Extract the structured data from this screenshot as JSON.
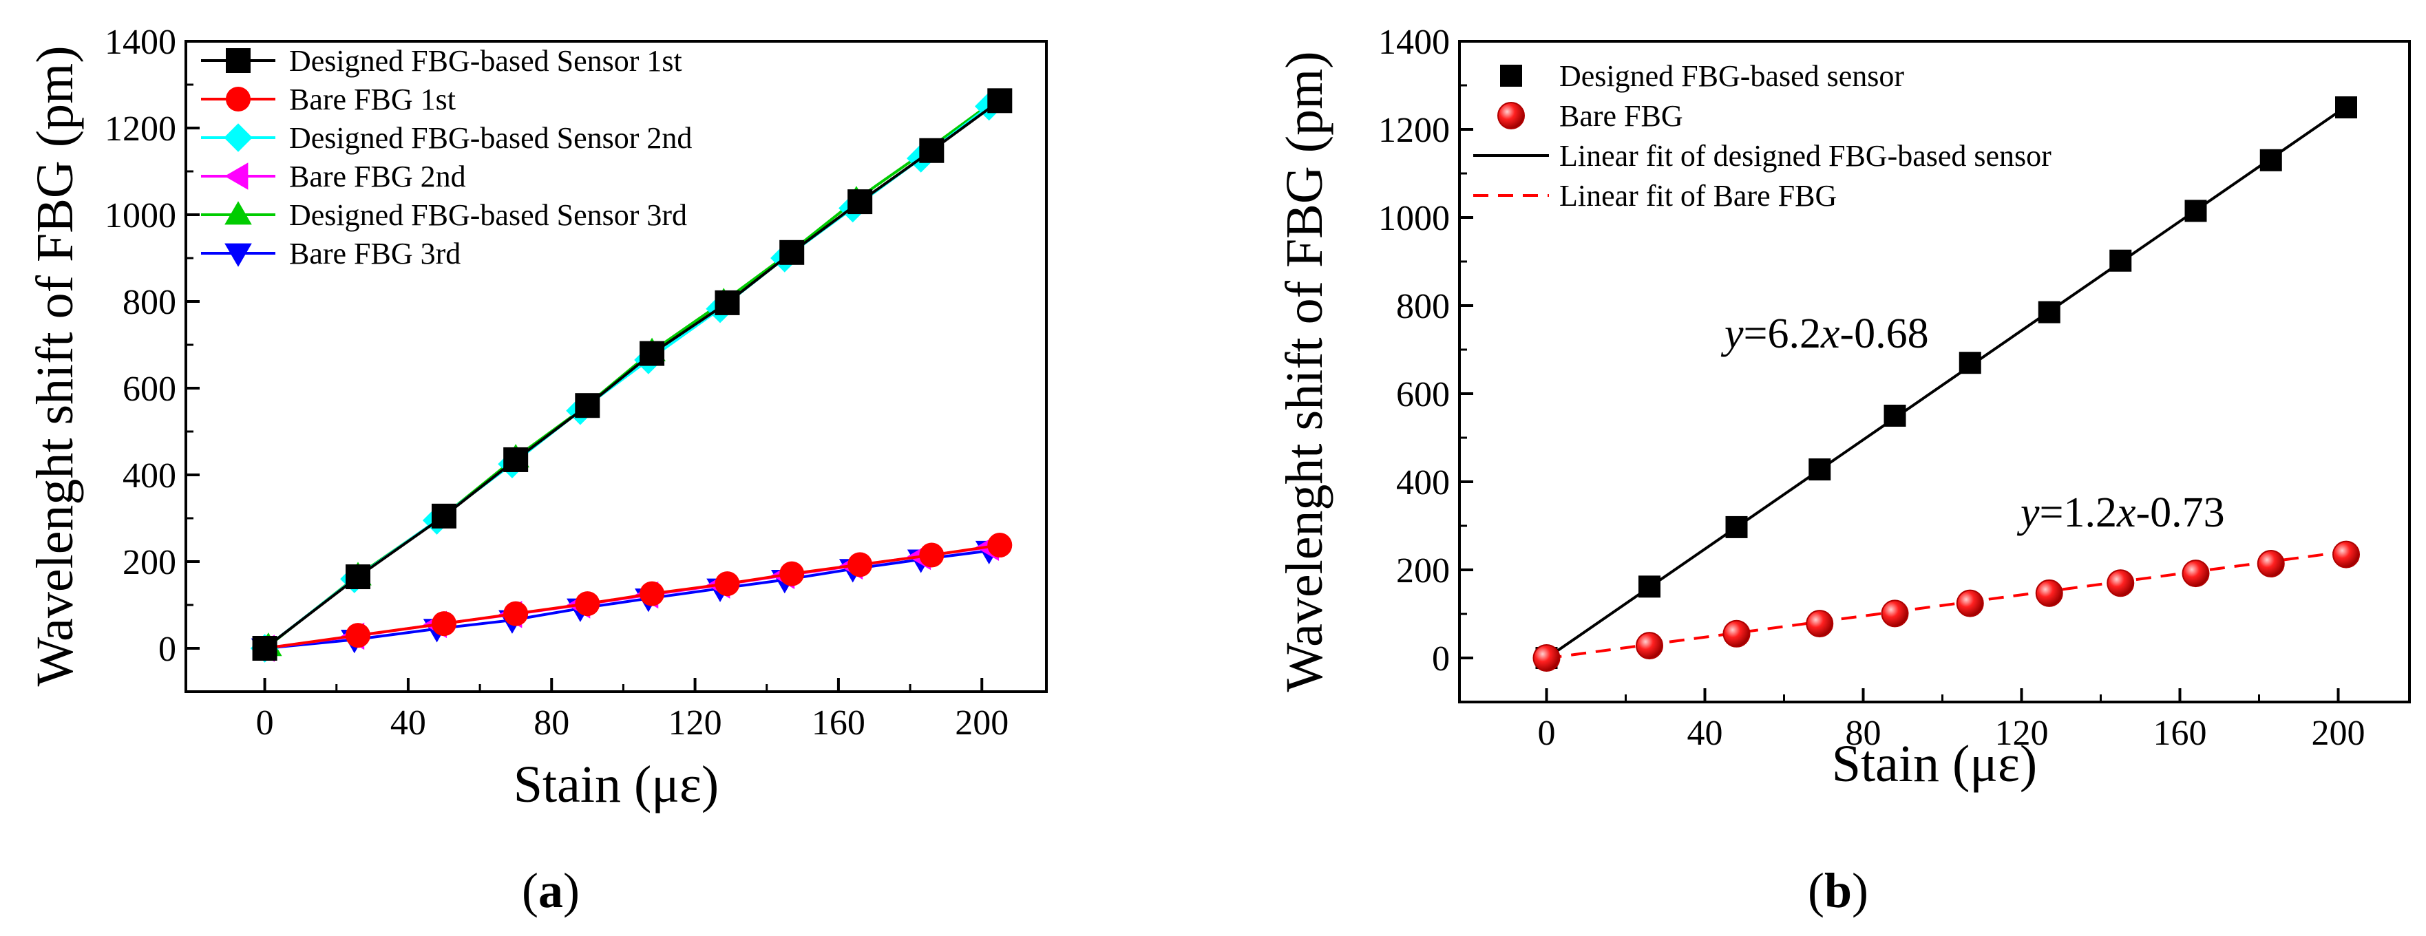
{
  "chart_data": [
    {
      "id": "a",
      "type": "line",
      "panel_label": "a",
      "xlabel": "Stain (με)",
      "ylabel": "Wavelenght shift of FBG (pm)",
      "xlim": [
        -22,
        218
      ],
      "ylim": [
        -100,
        1400
      ],
      "xticks": [
        "0",
        "40",
        "80",
        "120",
        "160",
        "200"
      ],
      "yticks": [
        "0",
        "200",
        "400",
        "600",
        "800",
        "1000",
        "1200",
        "1400"
      ],
      "legend_position": "top-left",
      "series": [
        {
          "name": "Designed FBG-based Sensor 1st",
          "color": "#000000",
          "marker": "square",
          "x": [
            0,
            26,
            50,
            70,
            90,
            108,
            129,
            147,
            166,
            186,
            205
          ],
          "y": [
            0,
            165,
            305,
            435,
            560,
            680,
            797,
            913,
            1030,
            1148,
            1263
          ]
        },
        {
          "name": "Bare FBG 1st",
          "color": "#ff0000",
          "marker": "circle",
          "x": [
            0,
            26,
            50,
            70,
            90,
            108,
            129,
            147,
            166,
            186,
            205
          ],
          "y": [
            0,
            30,
            57,
            80,
            103,
            126,
            149,
            172,
            193,
            215,
            238
          ]
        },
        {
          "name": "Designed FBG-based Sensor 2nd",
          "color": "#00ffff",
          "marker": "diamond",
          "x": [
            0,
            25,
            48,
            69,
            88,
            107,
            127,
            145,
            164,
            183,
            202
          ],
          "y": [
            0,
            160,
            295,
            425,
            548,
            665,
            783,
            900,
            1015,
            1130,
            1250
          ]
        },
        {
          "name": "Bare FBG 2nd",
          "color": "#ff00ff",
          "marker": "triangle-left",
          "x": [
            0,
            25,
            48,
            69,
            88,
            107,
            127,
            145,
            164,
            183,
            202
          ],
          "y": [
            0,
            28,
            55,
            78,
            100,
            123,
            146,
            168,
            190,
            212,
            233
          ]
        },
        {
          "name": "Designed FBG-based Sensor 3rd",
          "color": "#00cc00",
          "marker": "triangle-up",
          "x": [
            1,
            26,
            49,
            70,
            89,
            108,
            128,
            146,
            165,
            184,
            203
          ],
          "y": [
            5,
            168,
            300,
            440,
            555,
            685,
            800,
            910,
            1035,
            1145,
            1260
          ]
        },
        {
          "name": "Bare FBG 3rd",
          "color": "#0000ff",
          "marker": "triangle-down",
          "x": [
            0,
            25,
            48,
            69,
            88,
            107,
            127,
            145,
            164,
            183,
            202
          ],
          "y": [
            0,
            20,
            45,
            65,
            92,
            115,
            138,
            158,
            183,
            205,
            225
          ]
        }
      ]
    },
    {
      "id": "b",
      "type": "scatter",
      "panel_label": "b",
      "xlabel": "Stain  (με)",
      "ylabel": "Wavelenght shift of FBG (pm)",
      "xlim": [
        -22,
        218
      ],
      "ylim": [
        -100,
        1400
      ],
      "xticks": [
        "0",
        "40",
        "80",
        "120",
        "160",
        "200"
      ],
      "yticks": [
        "0",
        "200",
        "400",
        "600",
        "800",
        "1000",
        "1200",
        "1400"
      ],
      "legend_position": "top-left",
      "series": [
        {
          "name": "Designed FBG-based sensor",
          "color": "#000000",
          "marker": "square",
          "x": [
            0,
            26,
            48,
            69,
            88,
            107,
            127,
            145,
            164,
            183,
            202
          ],
          "y": [
            0,
            162,
            297,
            428,
            550,
            670,
            785,
            902,
            1015,
            1130,
            1250
          ]
        },
        {
          "name": "Bare FBG",
          "color": "#ff0000",
          "marker": "sphere",
          "x": [
            0,
            26,
            48,
            69,
            88,
            107,
            127,
            145,
            164,
            183,
            202
          ],
          "y": [
            0,
            28,
            55,
            78,
            101,
            124,
            147,
            170,
            192,
            214,
            235
          ]
        }
      ],
      "fits": [
        {
          "name": "Linear fit of designed FBG-based sensor",
          "color": "#000000",
          "dash": false,
          "slope": 6.2,
          "intercept": -0.68,
          "x_range": [
            0,
            202
          ]
        },
        {
          "name": "Linear fit of Bare FBG",
          "color": "#ff0000",
          "dash": true,
          "slope": 1.2,
          "intercept": -0.73,
          "x_range": [
            0,
            202
          ]
        }
      ],
      "annotations": [
        {
          "id": "eq1",
          "y_var": "y",
          "rest": "=6.2",
          "x_var": "x",
          "tail": "-0.68"
        },
        {
          "id": "eq2",
          "y_var": "y",
          "rest": "=1.2",
          "x_var": "x",
          "tail": "-0.73"
        }
      ]
    }
  ]
}
